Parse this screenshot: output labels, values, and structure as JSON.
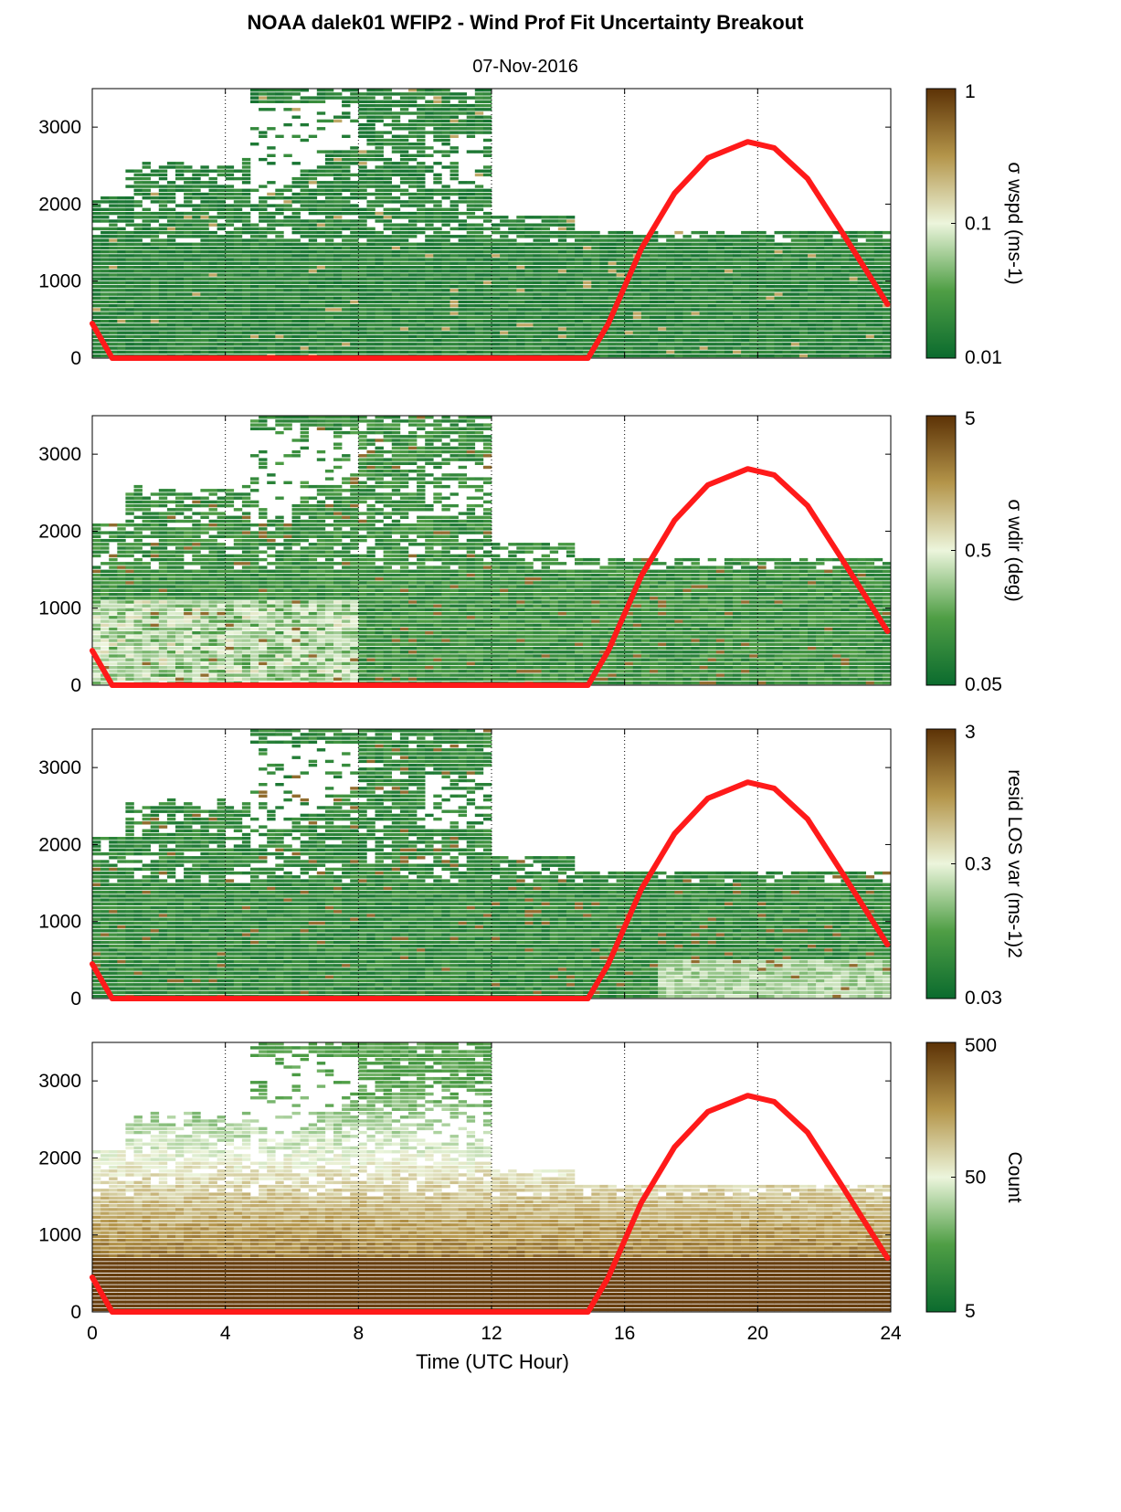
{
  "figure": {
    "title": "NOAA dalek01 WFIP2 - Wind Prof Fit Uncertainty Breakout",
    "subtitle": "07-Nov-2016",
    "xlabel": "Time (UTC Hour)"
  },
  "colors": {
    "colormap_low": "#0b6b2e",
    "colormap_mid": "#ecf5dc",
    "colormap_high": "#5c3206",
    "curve": "#ff1a1a"
  },
  "chart_data": [
    {
      "type": "heatmap",
      "panel": "wspd",
      "colorbar_label": "σ wspd (ms-1)",
      "colorbar_scale": "log",
      "colorbar_ticks": [
        "1",
        "0.1",
        "0.01"
      ],
      "xlim": [
        0,
        24
      ],
      "ylim": [
        0,
        3500
      ],
      "x_ticks": [
        "0",
        "4",
        "8",
        "12",
        "16",
        "20",
        "24"
      ],
      "y_ticks": [
        "0",
        "1000",
        "2000",
        "3000"
      ],
      "grid": "vertical dotted at 4, 8, 12, 16, 20",
      "overlay_line": {
        "x": [
          0,
          0.6,
          14.9,
          15.5,
          16.5,
          17.5,
          18.5,
          19.7,
          20.5,
          21.5,
          22.5,
          23.9
        ],
        "y": [
          450,
          0,
          0,
          440,
          1420,
          2140,
          2600,
          2810,
          2730,
          2330,
          1660,
          700
        ]
      }
    },
    {
      "type": "heatmap",
      "panel": "wdir",
      "colorbar_label": "σ wdir (deg)",
      "colorbar_scale": "log",
      "colorbar_ticks": [
        "5",
        "0.5",
        "0.05"
      ],
      "xlim": [
        0,
        24
      ],
      "ylim": [
        0,
        3500
      ],
      "x_ticks": [
        "0",
        "4",
        "8",
        "12",
        "16",
        "20",
        "24"
      ],
      "y_ticks": [
        "0",
        "1000",
        "2000",
        "3000"
      ],
      "grid": "vertical dotted at 4, 8, 12, 16, 20",
      "overlay_line": {
        "x": [
          0,
          0.6,
          14.9,
          15.5,
          16.5,
          17.5,
          18.5,
          19.7,
          20.5,
          21.5,
          22.5,
          23.9
        ],
        "y": [
          450,
          0,
          0,
          440,
          1420,
          2140,
          2600,
          2810,
          2730,
          2330,
          1660,
          700
        ]
      }
    },
    {
      "type": "heatmap",
      "panel": "resid",
      "colorbar_label": "resid LOS var (ms-1)2",
      "colorbar_scale": "log",
      "colorbar_ticks": [
        "3",
        "0.3",
        "0.03"
      ],
      "xlim": [
        0,
        24
      ],
      "ylim": [
        0,
        3500
      ],
      "x_ticks": [
        "0",
        "4",
        "8",
        "12",
        "16",
        "20",
        "24"
      ],
      "y_ticks": [
        "0",
        "1000",
        "2000",
        "3000"
      ],
      "grid": "vertical dotted at 4, 8, 12, 16, 20",
      "overlay_line": {
        "x": [
          0,
          0.6,
          14.9,
          15.5,
          16.5,
          17.5,
          18.5,
          19.7,
          20.5,
          21.5,
          22.5,
          23.9
        ],
        "y": [
          450,
          0,
          0,
          440,
          1420,
          2140,
          2600,
          2810,
          2730,
          2330,
          1660,
          700
        ]
      }
    },
    {
      "type": "heatmap",
      "panel": "count",
      "colorbar_label": "Count",
      "colorbar_scale": "log",
      "colorbar_ticks": [
        "500",
        "50",
        "5"
      ],
      "xlim": [
        0,
        24
      ],
      "ylim": [
        0,
        3500
      ],
      "x_ticks": [
        "0",
        "4",
        "8",
        "12",
        "16",
        "20",
        "24"
      ],
      "y_ticks": [
        "0",
        "1000",
        "2000",
        "3000"
      ],
      "grid": "vertical dotted at 4, 8, 12, 16, 20",
      "overlay_line": {
        "x": [
          0,
          0.6,
          14.9,
          15.5,
          16.5,
          17.5,
          18.5,
          19.7,
          20.5,
          21.5,
          22.5,
          23.9
        ],
        "y": [
          450,
          0,
          0,
          440,
          1420,
          2140,
          2600,
          2810,
          2730,
          2330,
          1660,
          700
        ]
      }
    }
  ]
}
